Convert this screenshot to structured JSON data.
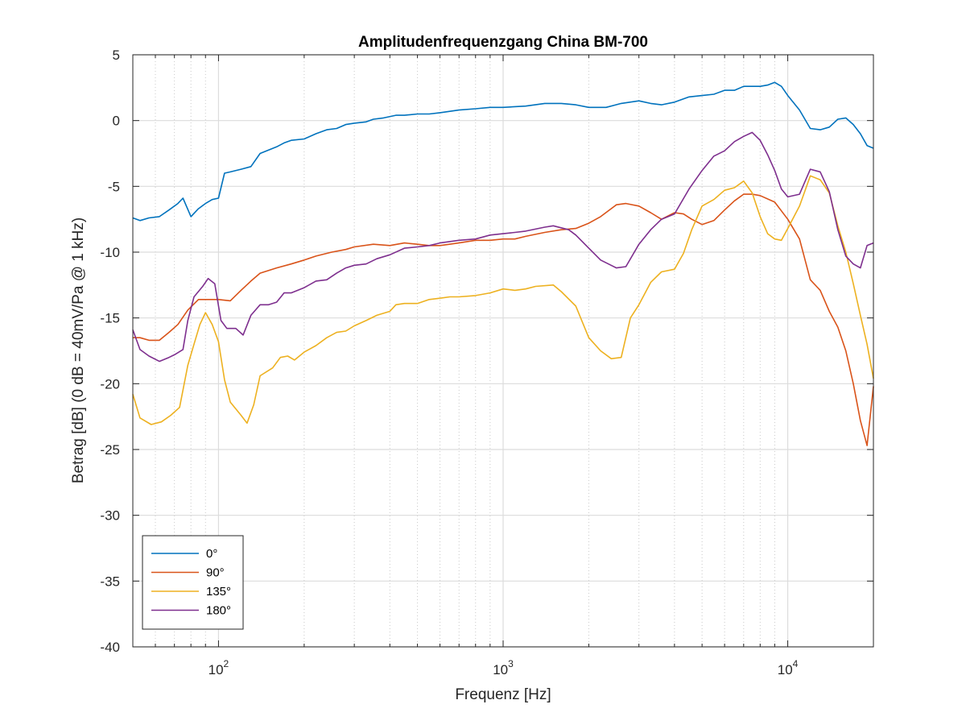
{
  "chart_data": {
    "type": "line",
    "title": "Amplitudenfrequenzgang China BM-700",
    "xlabel": "Frequenz [Hz]",
    "ylabel": "Betrag [dB] (0 dB = 40mV/Pa @ 1 kHz)",
    "xscale": "log",
    "xlim": [
      50,
      20000
    ],
    "ylim": [
      -40,
      5
    ],
    "yticks": [
      5,
      0,
      -5,
      -10,
      -15,
      -20,
      -25,
      -30,
      -35,
      -40
    ],
    "xticks": [
      {
        "value": 100,
        "base": "10",
        "exp": "2"
      },
      {
        "value": 1000,
        "base": "10",
        "exp": "3"
      },
      {
        "value": 10000,
        "base": "10",
        "exp": "4"
      }
    ],
    "grid": true,
    "legend": "bottom-left",
    "series": [
      {
        "name": "0°",
        "color": "#0072BD",
        "points": [
          [
            50,
            -7.4
          ],
          [
            53,
            -7.6
          ],
          [
            57,
            -7.4
          ],
          [
            62,
            -7.3
          ],
          [
            67,
            -6.8
          ],
          [
            72,
            -6.3
          ],
          [
            75,
            -5.9
          ],
          [
            80,
            -7.3
          ],
          [
            85,
            -6.7
          ],
          [
            90,
            -6.3
          ],
          [
            95,
            -6.0
          ],
          [
            100,
            -5.9
          ],
          [
            105,
            -4.0
          ],
          [
            110,
            -3.9
          ],
          [
            120,
            -3.7
          ],
          [
            130,
            -3.5
          ],
          [
            140,
            -2.5
          ],
          [
            160,
            -2.0
          ],
          [
            170,
            -1.7
          ],
          [
            180,
            -1.5
          ],
          [
            200,
            -1.4
          ],
          [
            220,
            -1.0
          ],
          [
            240,
            -0.7
          ],
          [
            260,
            -0.6
          ],
          [
            280,
            -0.3
          ],
          [
            300,
            -0.2
          ],
          [
            330,
            -0.1
          ],
          [
            350,
            0.1
          ],
          [
            380,
            0.2
          ],
          [
            420,
            0.4
          ],
          [
            450,
            0.4
          ],
          [
            500,
            0.5
          ],
          [
            550,
            0.5
          ],
          [
            600,
            0.6
          ],
          [
            700,
            0.8
          ],
          [
            800,
            0.9
          ],
          [
            900,
            1.0
          ],
          [
            1000,
            1.0
          ],
          [
            1200,
            1.1
          ],
          [
            1400,
            1.3
          ],
          [
            1600,
            1.3
          ],
          [
            1800,
            1.2
          ],
          [
            2000,
            1.0
          ],
          [
            2300,
            1.0
          ],
          [
            2600,
            1.3
          ],
          [
            3000,
            1.5
          ],
          [
            3300,
            1.3
          ],
          [
            3600,
            1.2
          ],
          [
            4000,
            1.4
          ],
          [
            4500,
            1.8
          ],
          [
            5000,
            1.9
          ],
          [
            5500,
            2.0
          ],
          [
            6000,
            2.3
          ],
          [
            6500,
            2.3
          ],
          [
            7000,
            2.6
          ],
          [
            7500,
            2.6
          ],
          [
            8000,
            2.6
          ],
          [
            8500,
            2.7
          ],
          [
            9000,
            2.9
          ],
          [
            9500,
            2.6
          ],
          [
            10000,
            1.9
          ],
          [
            11000,
            0.8
          ],
          [
            12000,
            -0.6
          ],
          [
            13000,
            -0.7
          ],
          [
            14000,
            -0.5
          ],
          [
            15000,
            0.1
          ],
          [
            16000,
            0.2
          ],
          [
            17000,
            -0.3
          ],
          [
            18000,
            -1.0
          ],
          [
            19000,
            -1.9
          ],
          [
            20000,
            -2.1
          ]
        ]
      },
      {
        "name": "90°",
        "color": "#D95319",
        "points": [
          [
            50,
            -16.5
          ],
          [
            53,
            -16.5
          ],
          [
            57,
            -16.7
          ],
          [
            62,
            -16.7
          ],
          [
            67,
            -16.1
          ],
          [
            72,
            -15.5
          ],
          [
            78,
            -14.4
          ],
          [
            85,
            -13.6
          ],
          [
            90,
            -13.6
          ],
          [
            100,
            -13.6
          ],
          [
            110,
            -13.7
          ],
          [
            120,
            -12.9
          ],
          [
            130,
            -12.2
          ],
          [
            140,
            -11.6
          ],
          [
            160,
            -11.2
          ],
          [
            180,
            -10.9
          ],
          [
            200,
            -10.6
          ],
          [
            220,
            -10.3
          ],
          [
            250,
            -10.0
          ],
          [
            280,
            -9.8
          ],
          [
            300,
            -9.6
          ],
          [
            350,
            -9.4
          ],
          [
            400,
            -9.5
          ],
          [
            450,
            -9.3
          ],
          [
            500,
            -9.4
          ],
          [
            550,
            -9.5
          ],
          [
            600,
            -9.5
          ],
          [
            700,
            -9.3
          ],
          [
            800,
            -9.1
          ],
          [
            900,
            -9.1
          ],
          [
            1000,
            -9.0
          ],
          [
            1100,
            -9.0
          ],
          [
            1200,
            -8.8
          ],
          [
            1400,
            -8.5
          ],
          [
            1600,
            -8.3
          ],
          [
            1800,
            -8.2
          ],
          [
            2000,
            -7.8
          ],
          [
            2200,
            -7.3
          ],
          [
            2500,
            -6.4
          ],
          [
            2700,
            -6.3
          ],
          [
            3000,
            -6.5
          ],
          [
            3300,
            -7.0
          ],
          [
            3600,
            -7.5
          ],
          [
            4000,
            -7.0
          ],
          [
            4300,
            -7.1
          ],
          [
            4600,
            -7.5
          ],
          [
            5000,
            -7.9
          ],
          [
            5500,
            -7.6
          ],
          [
            6000,
            -6.8
          ],
          [
            6500,
            -6.1
          ],
          [
            7000,
            -5.6
          ],
          [
            7500,
            -5.6
          ],
          [
            8000,
            -5.7
          ],
          [
            9000,
            -6.2
          ],
          [
            10000,
            -7.5
          ],
          [
            11000,
            -9.0
          ],
          [
            12000,
            -12.1
          ],
          [
            13000,
            -12.9
          ],
          [
            14000,
            -14.5
          ],
          [
            15000,
            -15.7
          ],
          [
            16000,
            -17.5
          ],
          [
            17000,
            -20.0
          ],
          [
            18000,
            -22.8
          ],
          [
            19000,
            -24.7
          ],
          [
            20000,
            -20.2
          ]
        ]
      },
      {
        "name": "135°",
        "color": "#EDB120",
        "points": [
          [
            50,
            -20.8
          ],
          [
            53,
            -22.6
          ],
          [
            58,
            -23.1
          ],
          [
            63,
            -22.9
          ],
          [
            68,
            -22.4
          ],
          [
            73,
            -21.8
          ],
          [
            78,
            -18.6
          ],
          [
            82,
            -17.0
          ],
          [
            86,
            -15.5
          ],
          [
            90,
            -14.6
          ],
          [
            95,
            -15.5
          ],
          [
            100,
            -16.8
          ],
          [
            105,
            -19.7
          ],
          [
            110,
            -21.4
          ],
          [
            120,
            -22.4
          ],
          [
            126,
            -23.0
          ],
          [
            133,
            -21.6
          ],
          [
            140,
            -19.4
          ],
          [
            155,
            -18.8
          ],
          [
            165,
            -18.0
          ],
          [
            175,
            -17.9
          ],
          [
            185,
            -18.2
          ],
          [
            200,
            -17.6
          ],
          [
            220,
            -17.1
          ],
          [
            240,
            -16.5
          ],
          [
            260,
            -16.1
          ],
          [
            280,
            -16.0
          ],
          [
            300,
            -15.6
          ],
          [
            330,
            -15.2
          ],
          [
            360,
            -14.8
          ],
          [
            400,
            -14.5
          ],
          [
            420,
            -14.0
          ],
          [
            450,
            -13.9
          ],
          [
            500,
            -13.9
          ],
          [
            550,
            -13.6
          ],
          [
            600,
            -13.5
          ],
          [
            650,
            -13.4
          ],
          [
            700,
            -13.4
          ],
          [
            800,
            -13.3
          ],
          [
            900,
            -13.1
          ],
          [
            1000,
            -12.8
          ],
          [
            1100,
            -12.9
          ],
          [
            1200,
            -12.8
          ],
          [
            1300,
            -12.6
          ],
          [
            1500,
            -12.5
          ],
          [
            1600,
            -13.0
          ],
          [
            1800,
            -14.1
          ],
          [
            2000,
            -16.5
          ],
          [
            2200,
            -17.5
          ],
          [
            2400,
            -18.1
          ],
          [
            2600,
            -18.0
          ],
          [
            2800,
            -15.0
          ],
          [
            3000,
            -14.0
          ],
          [
            3300,
            -12.3
          ],
          [
            3600,
            -11.5
          ],
          [
            4000,
            -11.3
          ],
          [
            4300,
            -10.1
          ],
          [
            4600,
            -8.3
          ],
          [
            5000,
            -6.5
          ],
          [
            5500,
            -6.0
          ],
          [
            6000,
            -5.3
          ],
          [
            6500,
            -5.1
          ],
          [
            7000,
            -4.6
          ],
          [
            7500,
            -5.5
          ],
          [
            8000,
            -7.3
          ],
          [
            8500,
            -8.6
          ],
          [
            9000,
            -9.0
          ],
          [
            9500,
            -9.1
          ],
          [
            10000,
            -8.2
          ],
          [
            11000,
            -6.5
          ],
          [
            12000,
            -4.2
          ],
          [
            13000,
            -4.5
          ],
          [
            14000,
            -5.5
          ],
          [
            15000,
            -8.0
          ],
          [
            16000,
            -10.0
          ],
          [
            17000,
            -12.4
          ],
          [
            18000,
            -14.8
          ],
          [
            19000,
            -17.0
          ],
          [
            20000,
            -19.6
          ]
        ]
      },
      {
        "name": "180°",
        "color": "#7E2F8E",
        "points": [
          [
            50,
            -15.9
          ],
          [
            53,
            -17.4
          ],
          [
            57,
            -17.9
          ],
          [
            62,
            -18.3
          ],
          [
            67,
            -18.0
          ],
          [
            70,
            -17.8
          ],
          [
            75,
            -17.4
          ],
          [
            78,
            -15.2
          ],
          [
            82,
            -13.4
          ],
          [
            88,
            -12.6
          ],
          [
            92,
            -12.0
          ],
          [
            97,
            -12.4
          ],
          [
            102,
            -15.2
          ],
          [
            107,
            -15.8
          ],
          [
            115,
            -15.8
          ],
          [
            122,
            -16.3
          ],
          [
            130,
            -14.8
          ],
          [
            140,
            -14.0
          ],
          [
            150,
            -14.0
          ],
          [
            160,
            -13.8
          ],
          [
            170,
            -13.1
          ],
          [
            180,
            -13.1
          ],
          [
            200,
            -12.7
          ],
          [
            220,
            -12.2
          ],
          [
            240,
            -12.1
          ],
          [
            260,
            -11.6
          ],
          [
            280,
            -11.2
          ],
          [
            300,
            -11.0
          ],
          [
            330,
            -10.9
          ],
          [
            360,
            -10.5
          ],
          [
            400,
            -10.2
          ],
          [
            450,
            -9.7
          ],
          [
            500,
            -9.6
          ],
          [
            550,
            -9.5
          ],
          [
            600,
            -9.3
          ],
          [
            700,
            -9.1
          ],
          [
            800,
            -9.0
          ],
          [
            900,
            -8.7
          ],
          [
            1000,
            -8.6
          ],
          [
            1100,
            -8.5
          ],
          [
            1200,
            -8.4
          ],
          [
            1400,
            -8.1
          ],
          [
            1500,
            -8.0
          ],
          [
            1700,
            -8.3
          ],
          [
            1800,
            -8.7
          ],
          [
            2000,
            -9.7
          ],
          [
            2200,
            -10.6
          ],
          [
            2500,
            -11.2
          ],
          [
            2700,
            -11.1
          ],
          [
            3000,
            -9.4
          ],
          [
            3300,
            -8.3
          ],
          [
            3600,
            -7.5
          ],
          [
            4000,
            -7.1
          ],
          [
            4500,
            -5.2
          ],
          [
            5000,
            -3.8
          ],
          [
            5500,
            -2.7
          ],
          [
            6000,
            -2.3
          ],
          [
            6500,
            -1.6
          ],
          [
            7000,
            -1.2
          ],
          [
            7500,
            -0.9
          ],
          [
            8000,
            -1.5
          ],
          [
            8500,
            -2.6
          ],
          [
            9000,
            -3.8
          ],
          [
            9500,
            -5.2
          ],
          [
            10000,
            -5.8
          ],
          [
            11000,
            -5.6
          ],
          [
            12000,
            -3.7
          ],
          [
            13000,
            -3.9
          ],
          [
            14000,
            -5.4
          ],
          [
            15000,
            -8.3
          ],
          [
            16000,
            -10.3
          ],
          [
            17000,
            -10.9
          ],
          [
            18000,
            -11.2
          ],
          [
            19000,
            -9.5
          ],
          [
            20000,
            -9.3
          ]
        ]
      }
    ]
  }
}
